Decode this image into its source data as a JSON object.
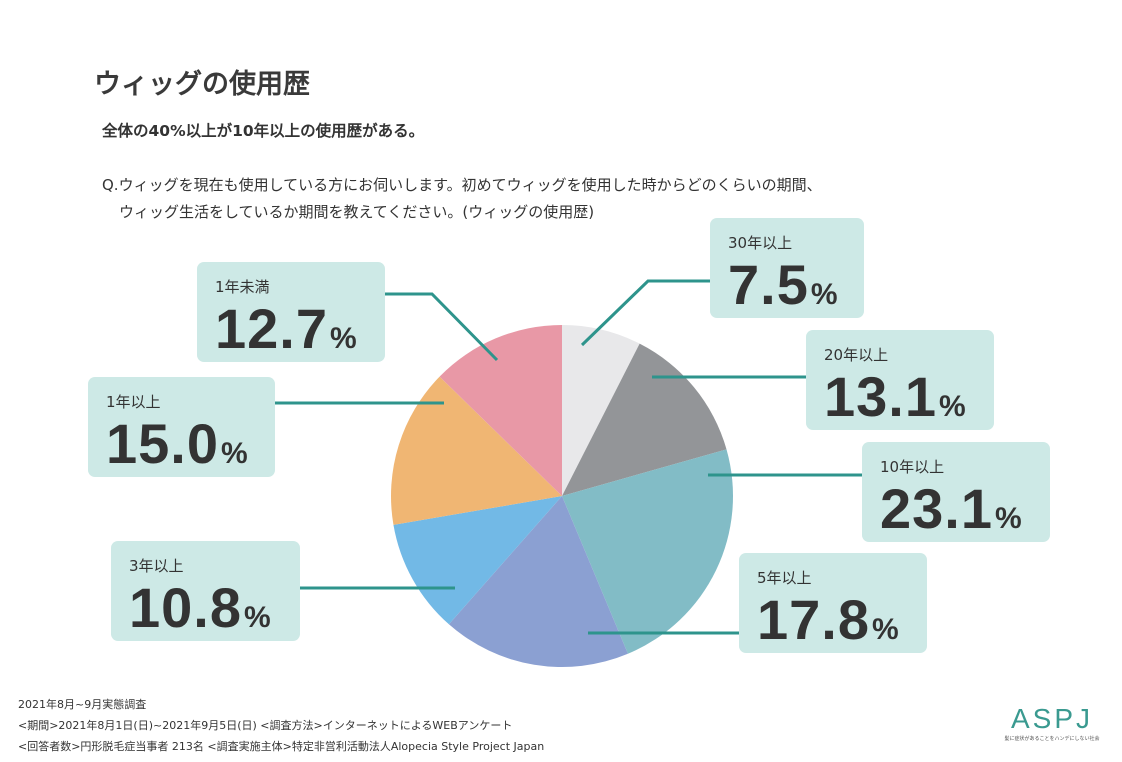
{
  "header": {
    "title": "ウィッグの使用歴",
    "subtitle": "全体の40%以上が10年以上の使用歴がある。",
    "question": [
      "Q.ウィッグを現在も使用している方にお伺いします。初めてウィッグを使用した時からどのくらいの期間、",
      "ウィッグ生活をしているか期間を教えてください。(ウィッグの使用歴)"
    ]
  },
  "chart_data": {
    "type": "pie",
    "start": "top",
    "direction": "clockwise",
    "slices": [
      {
        "label": "30年以上",
        "value": 7.5,
        "display": "7.5",
        "color": "#e8e8ea"
      },
      {
        "label": "20年以上",
        "value": 13.1,
        "display": "13.1",
        "color": "#939598"
      },
      {
        "label": "10年以上",
        "value": 23.1,
        "display": "23.1",
        "color": "#82bcc6"
      },
      {
        "label": "5年以上",
        "value": 17.8,
        "display": "17.8",
        "color": "#8ba0d2"
      },
      {
        "label": "3年以上",
        "value": 10.8,
        "display": "10.8",
        "color": "#72b9e6"
      },
      {
        "label": "1年以上",
        "value": 15.0,
        "display": "15.0",
        "color": "#f0b673"
      },
      {
        "label": "1年未満",
        "value": 12.7,
        "display": "12.7",
        "color": "#e898a6"
      }
    ],
    "unit": "%",
    "callout_color": "#cde9e6",
    "leader_color": "#2e948c"
  },
  "footer": [
    "2021年8月~9月実態調査",
    "<期間>2021年8月1日(日)~2021年9月5日(日) <調査方法>インターネットによるWEBアンケート",
    "<回答者数>円形脱毛症当事者 213名 <調査実施主体>特定非営利活動法人Alopecia Style Project Japan"
  ],
  "logo": {
    "mark": "ASPJ",
    "tagline": "髪に症状があることをハンデにしない社会"
  }
}
